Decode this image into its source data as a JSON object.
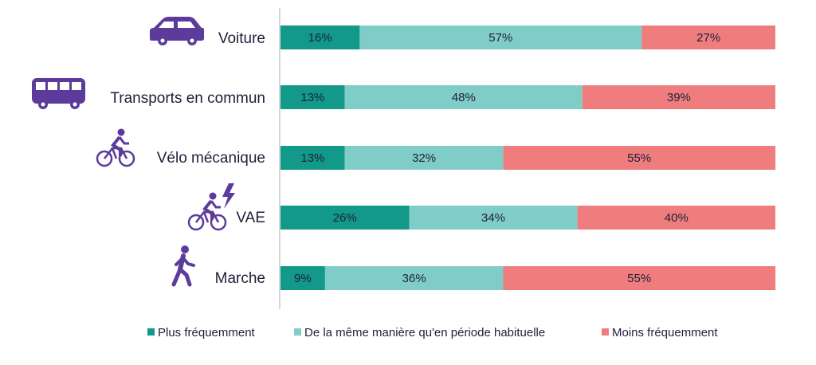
{
  "chart_data": {
    "type": "bar",
    "orientation": "horizontal",
    "stacked": true,
    "categories": [
      "Voiture",
      "Transports en commun",
      "Vélo mécanique",
      "VAE",
      "Marche"
    ],
    "category_icons": [
      "car-icon",
      "bus-icon",
      "bicycle-icon",
      "electric-bike-icon",
      "walking-icon"
    ],
    "series": [
      {
        "name": "Plus fréquemment",
        "color": "#12998a",
        "values": [
          16,
          13,
          13,
          26,
          9
        ]
      },
      {
        "name": "De la même manière qu'en période habituelle",
        "color": "#80ccc7",
        "values": [
          57,
          48,
          32,
          34,
          36
        ]
      },
      {
        "name": "Moins fréquemment",
        "color": "#ef7d7d",
        "values": [
          27,
          39,
          55,
          40,
          55
        ]
      }
    ],
    "value_suffix": "%",
    "xlim": [
      0,
      100
    ],
    "legend_position": "bottom",
    "icon_color": "#5b3b9b"
  }
}
